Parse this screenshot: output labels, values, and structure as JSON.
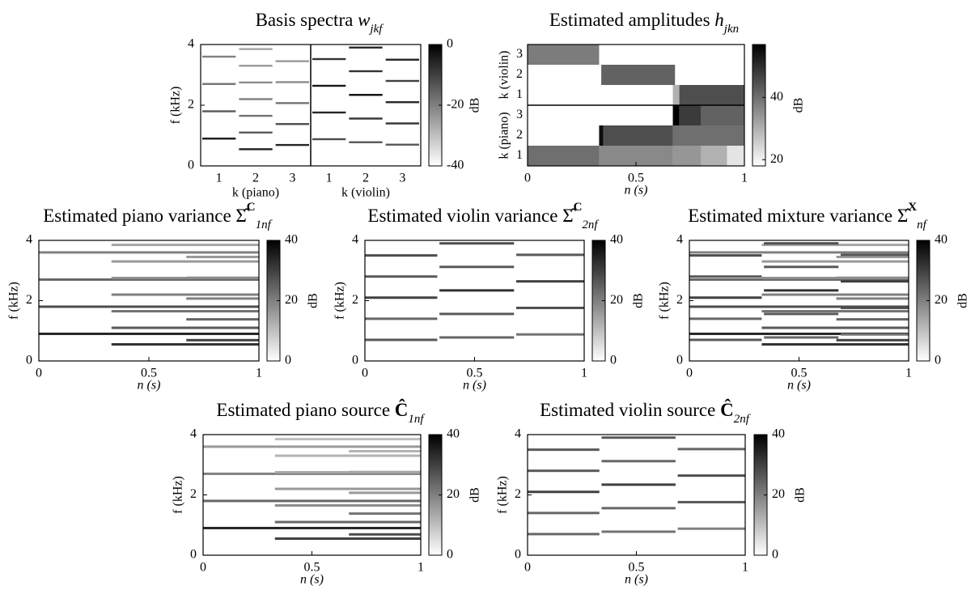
{
  "chart_data": [
    {
      "type": "spectra",
      "title": "Basis spectra",
      "title_symbol": "w",
      "title_sub": "jkf",
      "ylabel": "f (kHz)",
      "ylim": [
        0,
        4
      ],
      "yticks": [
        0,
        2,
        4
      ],
      "colorbar": {
        "label": "dB",
        "lim": [
          -40,
          0
        ],
        "ticks": [
          0,
          -20,
          -40
        ]
      },
      "groups": [
        {
          "xlabel": "k (piano)",
          "columns": [
            {
              "label": "1",
              "lines": [
                [
                  0.9,
                  -4
                ],
                [
                  1.8,
                  -14
                ],
                [
                  2.7,
                  -18
                ],
                [
                  3.6,
                  -20
                ]
              ]
            },
            {
              "label": "2",
              "lines": [
                [
                  0.55,
                  -5
                ],
                [
                  1.1,
                  -14
                ],
                [
                  1.65,
                  -18
                ],
                [
                  2.2,
                  -20
                ],
                [
                  2.75,
                  -22
                ],
                [
                  3.3,
                  -24
                ],
                [
                  3.85,
                  -26
                ]
              ]
            },
            {
              "label": "3",
              "lines": [
                [
                  0.69,
                  -6
                ],
                [
                  1.38,
                  -12
                ],
                [
                  2.07,
                  -18
                ],
                [
                  2.76,
                  -22
                ],
                [
                  3.45,
                  -24
                ]
              ]
            }
          ]
        },
        {
          "xlabel": "k (violin)",
          "columns": [
            {
              "label": "1",
              "lines": [
                [
                  0.88,
                  -12
                ],
                [
                  1.76,
                  -6
                ],
                [
                  2.64,
                  -4
                ],
                [
                  3.52,
                  -8
                ]
              ]
            },
            {
              "label": "2",
              "lines": [
                [
                  0.78,
                  -14
                ],
                [
                  1.56,
                  -8
                ],
                [
                  2.34,
                  -2
                ],
                [
                  3.12,
                  -8
                ],
                [
                  3.9,
                  -6
                ]
              ]
            },
            {
              "label": "3",
              "lines": [
                [
                  0.7,
                  -14
                ],
                [
                  1.4,
                  -8
                ],
                [
                  2.1,
                  -6
                ],
                [
                  2.8,
                  -10
                ],
                [
                  3.5,
                  -6
                ]
              ]
            }
          ]
        }
      ]
    },
    {
      "type": "activation",
      "title": "Estimated amplitudes",
      "title_symbol": "h",
      "title_sub": "jkn",
      "xlabel": "n (s)",
      "xlim": [
        0,
        1
      ],
      "xticks": [
        0,
        0.5,
        1
      ],
      "colorbar": {
        "label": "dB",
        "lim": [
          18,
          57
        ],
        "ticks": [
          20,
          40
        ]
      },
      "groups": [
        {
          "label": "k (piano)",
          "rows": [
            {
              "label": "1",
              "segments": [
                [
                  0,
                  0.33,
                  40
                ],
                [
                  0.33,
                  0.67,
                  36
                ],
                [
                  0.67,
                  0.8,
                  34
                ],
                [
                  0.8,
                  0.92,
                  30
                ],
                [
                  0.92,
                  1,
                  22
                ]
              ]
            },
            {
              "label": "2",
              "segments": [
                [
                  0.33,
                  0.35,
                  55
                ],
                [
                  0.35,
                  0.67,
                  45
                ],
                [
                  0.67,
                  1,
                  40
                ]
              ]
            },
            {
              "label": "3",
              "segments": [
                [
                  0.67,
                  0.7,
                  57
                ],
                [
                  0.7,
                  0.8,
                  48
                ],
                [
                  0.8,
                  1,
                  42
                ]
              ]
            }
          ]
        },
        {
          "label": "k (violin)",
          "rows": [
            {
              "label": "1",
              "segments": [
                [
                  0.67,
                  0.7,
                  30
                ],
                [
                  0.7,
                  1,
                  45
                ]
              ]
            },
            {
              "label": "2",
              "segments": [
                [
                  0.34,
                  0.68,
                  42
                ]
              ]
            },
            {
              "label": "3",
              "segments": [
                [
                  0,
                  0.33,
                  38
                ]
              ]
            }
          ]
        }
      ]
    },
    {
      "type": "heatmap",
      "title": "Estimated piano variance",
      "title_symbol": "Σ̂",
      "title_sup": "C",
      "title_sub": "1nf",
      "xlabel": "n (s)",
      "ylabel": "f (kHz)",
      "xlim": [
        0,
        1
      ],
      "xticks": [
        0,
        0.5,
        1
      ],
      "ylim": [
        0,
        4
      ],
      "yticks": [
        0,
        2,
        4
      ],
      "colorbar": {
        "label": "dB",
        "lim": [
          0,
          40
        ],
        "ticks": [
          0,
          20,
          40
        ]
      },
      "lines": [
        [
          0.9,
          0,
          1,
          34
        ],
        [
          1.8,
          0,
          1,
          28
        ],
        [
          2.7,
          0,
          1,
          24
        ],
        [
          3.6,
          0,
          1,
          20
        ],
        [
          0.55,
          0.33,
          1,
          32
        ],
        [
          1.1,
          0.33,
          1,
          26
        ],
        [
          1.65,
          0.33,
          1,
          22
        ],
        [
          2.2,
          0.33,
          1,
          20
        ],
        [
          2.75,
          0.33,
          1,
          18
        ],
        [
          3.3,
          0.33,
          1,
          16
        ],
        [
          3.85,
          0.33,
          1,
          14
        ],
        [
          0.69,
          0.67,
          1,
          30
        ],
        [
          1.38,
          0.67,
          1,
          24
        ],
        [
          2.07,
          0.67,
          1,
          20
        ],
        [
          2.76,
          0.67,
          1,
          18
        ],
        [
          3.45,
          0.67,
          1,
          16
        ]
      ]
    },
    {
      "type": "heatmap",
      "title": "Estimated violin variance",
      "title_symbol": "Σ̂",
      "title_sup": "C",
      "title_sub": "2nf",
      "xlabel": "n (s)",
      "ylabel": "f (kHz)",
      "xlim": [
        0,
        1
      ],
      "xticks": [
        0,
        0.5,
        1
      ],
      "ylim": [
        0,
        4
      ],
      "yticks": [
        0,
        2,
        4
      ],
      "colorbar": {
        "label": "dB",
        "lim": [
          0,
          40
        ],
        "ticks": [
          0,
          20,
          40
        ]
      },
      "lines": [
        [
          0.7,
          0,
          0.33,
          26
        ],
        [
          1.4,
          0,
          0.33,
          24
        ],
        [
          2.1,
          0,
          0.33,
          30
        ],
        [
          2.8,
          0,
          0.33,
          26
        ],
        [
          3.5,
          0,
          0.33,
          28
        ],
        [
          0.78,
          0.34,
          0.68,
          24
        ],
        [
          1.56,
          0.34,
          0.68,
          26
        ],
        [
          2.34,
          0.34,
          0.68,
          32
        ],
        [
          3.12,
          0.34,
          0.68,
          26
        ],
        [
          3.9,
          0.34,
          0.68,
          28
        ],
        [
          0.88,
          0.69,
          1,
          22
        ],
        [
          1.76,
          0.69,
          1,
          28
        ],
        [
          2.64,
          0.69,
          1,
          30
        ],
        [
          3.52,
          0.69,
          1,
          26
        ]
      ]
    },
    {
      "type": "heatmap",
      "title": "Estimated mixture variance",
      "title_symbol": "Σ̂",
      "title_sup": "X",
      "title_sub": "nf",
      "xlabel": "n (s)",
      "ylabel": "f (kHz)",
      "xlim": [
        0,
        1
      ],
      "xticks": [
        0,
        0.5,
        1
      ],
      "ylim": [
        0,
        4
      ],
      "yticks": [
        0,
        2,
        4
      ],
      "colorbar": {
        "label": "dB",
        "lim": [
          0,
          40
        ],
        "ticks": [
          0,
          20,
          40
        ]
      },
      "lines": [
        [
          0.9,
          0,
          1,
          34
        ],
        [
          1.8,
          0,
          1,
          28
        ],
        [
          2.7,
          0,
          1,
          24
        ],
        [
          3.6,
          0,
          1,
          20
        ],
        [
          0.55,
          0.33,
          1,
          32
        ],
        [
          1.1,
          0.33,
          1,
          26
        ],
        [
          1.65,
          0.33,
          1,
          22
        ],
        [
          2.2,
          0.33,
          1,
          20
        ],
        [
          2.75,
          0.33,
          1,
          18
        ],
        [
          3.3,
          0.33,
          1,
          16
        ],
        [
          3.85,
          0.33,
          1,
          14
        ],
        [
          0.69,
          0.67,
          1,
          30
        ],
        [
          1.38,
          0.67,
          1,
          24
        ],
        [
          2.07,
          0.67,
          1,
          20
        ],
        [
          2.76,
          0.67,
          1,
          18
        ],
        [
          3.45,
          0.67,
          1,
          16
        ],
        [
          0.7,
          0,
          0.33,
          26
        ],
        [
          1.4,
          0,
          0.33,
          24
        ],
        [
          2.1,
          0,
          0.33,
          30
        ],
        [
          2.8,
          0,
          0.33,
          26
        ],
        [
          3.5,
          0,
          0.33,
          28
        ],
        [
          0.78,
          0.34,
          0.68,
          24
        ],
        [
          1.56,
          0.34,
          0.68,
          26
        ],
        [
          2.34,
          0.34,
          0.68,
          32
        ],
        [
          3.12,
          0.34,
          0.68,
          26
        ],
        [
          3.9,
          0.34,
          0.68,
          28
        ],
        [
          0.88,
          0.69,
          1,
          22
        ],
        [
          1.76,
          0.69,
          1,
          28
        ],
        [
          2.64,
          0.69,
          1,
          30
        ],
        [
          3.52,
          0.69,
          1,
          26
        ]
      ]
    },
    {
      "type": "heatmap",
      "title": "Estimated piano source",
      "title_symbol": "Ĉ",
      "title_sub": "1nf",
      "xlabel": "n (s)",
      "ylabel": "f (kHz)",
      "xlim": [
        0,
        1
      ],
      "xticks": [
        0,
        0.5,
        1
      ],
      "ylim": [
        0,
        4
      ],
      "yticks": [
        0,
        2,
        4
      ],
      "colorbar": {
        "label": "dB",
        "lim": [
          0,
          40
        ],
        "ticks": [
          0,
          20,
          40
        ]
      },
      "lines": [
        [
          0.9,
          0,
          1,
          34
        ],
        [
          1.8,
          0,
          1,
          24
        ],
        [
          2.7,
          0,
          1,
          20
        ],
        [
          3.6,
          0,
          1,
          16
        ],
        [
          0.55,
          0.33,
          1,
          30
        ],
        [
          1.1,
          0.33,
          1,
          24
        ],
        [
          1.65,
          0.33,
          1,
          18
        ],
        [
          2.2,
          0.33,
          1,
          16
        ],
        [
          2.75,
          0.33,
          1,
          14
        ],
        [
          3.3,
          0.33,
          1,
          12
        ],
        [
          3.85,
          0.33,
          1,
          10
        ],
        [
          0.69,
          0.67,
          1,
          28
        ],
        [
          1.38,
          0.67,
          1,
          22
        ],
        [
          2.07,
          0.67,
          1,
          16
        ],
        [
          2.76,
          0.67,
          1,
          14
        ],
        [
          3.45,
          0.67,
          1,
          12
        ]
      ]
    },
    {
      "type": "heatmap",
      "title": "Estimated violin source",
      "title_symbol": "Ĉ",
      "title_sub": "2nf",
      "xlabel": "n (s)",
      "ylabel": "f (kHz)",
      "xlim": [
        0,
        1
      ],
      "xticks": [
        0,
        0.5,
        1
      ],
      "ylim": [
        0,
        4
      ],
      "yticks": [
        0,
        2,
        4
      ],
      "colorbar": {
        "label": "dB",
        "lim": [
          0,
          40
        ],
        "ticks": [
          0,
          20,
          40
        ]
      },
      "lines": [
        [
          0.7,
          0,
          0.33,
          24
        ],
        [
          1.4,
          0,
          0.33,
          24
        ],
        [
          2.1,
          0,
          0.33,
          30
        ],
        [
          2.8,
          0,
          0.33,
          26
        ],
        [
          3.5,
          0,
          0.33,
          26
        ],
        [
          0.78,
          0.34,
          0.68,
          22
        ],
        [
          1.56,
          0.34,
          0.68,
          24
        ],
        [
          2.34,
          0.34,
          0.68,
          30
        ],
        [
          3.12,
          0.34,
          0.68,
          24
        ],
        [
          3.9,
          0.34,
          0.68,
          26
        ],
        [
          0.88,
          0.69,
          1,
          20
        ],
        [
          1.76,
          0.69,
          1,
          26
        ],
        [
          2.64,
          0.69,
          1,
          28
        ],
        [
          3.52,
          0.69,
          1,
          24
        ]
      ]
    }
  ]
}
